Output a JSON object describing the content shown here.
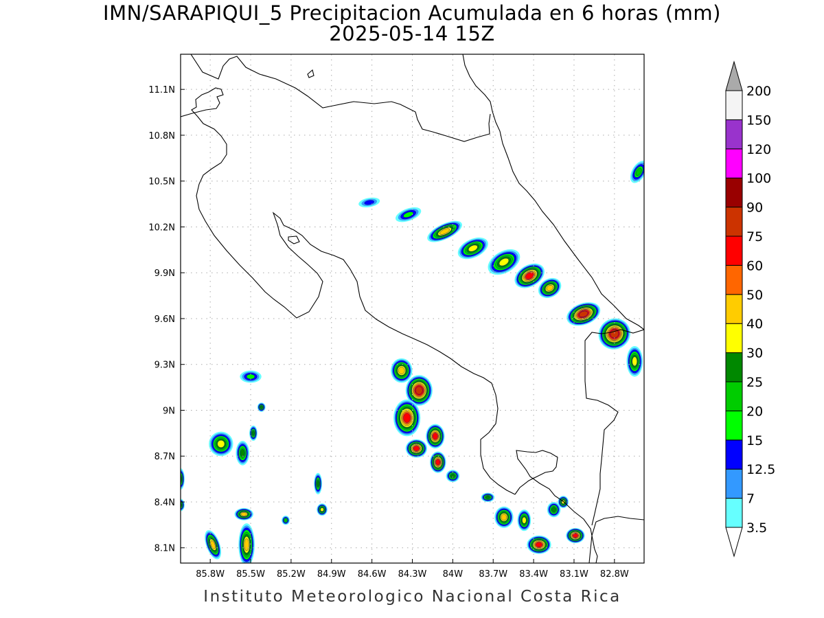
{
  "title": {
    "line1": "IMN/SARAPIQUI_5 Precipitacion Acumulada en 6 horas (mm)",
    "line2": "2025-05-14 15Z"
  },
  "footer": "Instituto Meteorologico Nacional Costa Rica",
  "map": {
    "lon_range": [
      -86.02,
      -82.58
    ],
    "lat_range": [
      8.0,
      11.33
    ],
    "lon_ticks": [
      {
        "value": -85.8,
        "label": "85.8W"
      },
      {
        "value": -85.5,
        "label": "85.5W"
      },
      {
        "value": -85.2,
        "label": "85.2W"
      },
      {
        "value": -84.9,
        "label": "84.9W"
      },
      {
        "value": -84.6,
        "label": "84.6W"
      },
      {
        "value": -84.3,
        "label": "84.3W"
      },
      {
        "value": -84.0,
        "label": "84W"
      },
      {
        "value": -83.7,
        "label": "83.7W"
      },
      {
        "value": -83.4,
        "label": "83.4W"
      },
      {
        "value": -83.1,
        "label": "83.1W"
      },
      {
        "value": -82.8,
        "label": "82.8W"
      }
    ],
    "lat_ticks": [
      {
        "value": 8.1,
        "label": "8.1N"
      },
      {
        "value": 8.4,
        "label": "8.4N"
      },
      {
        "value": 8.7,
        "label": "8.7N"
      },
      {
        "value": 9.0,
        "label": "9N"
      },
      {
        "value": 9.3,
        "label": "9.3N"
      },
      {
        "value": 9.6,
        "label": "9.6N"
      },
      {
        "value": 9.9,
        "label": "9.9N"
      },
      {
        "value": 10.2,
        "label": "10.2N"
      },
      {
        "value": 10.5,
        "label": "10.5N"
      },
      {
        "value": 10.8,
        "label": "10.8N"
      },
      {
        "value": 11.1,
        "label": "11.1N"
      }
    ],
    "grid": true,
    "coastline_color": "#000000"
  },
  "legend": {
    "units": "mm",
    "levels": [
      "3.5",
      "7",
      "12.5",
      "15",
      "20",
      "25",
      "30",
      "40",
      "50",
      "60",
      "75",
      "90",
      "100",
      "120",
      "150",
      "200"
    ],
    "colors": [
      "#66ffff",
      "#3399ff",
      "#0000ff",
      "#00ff00",
      "#00cc00",
      "#008800",
      "#ffff00",
      "#ffcc00",
      "#ff6600",
      "#ff0000",
      "#cc3300",
      "#990000",
      "#ff00ff",
      "#9933cc",
      "#f4f4f4",
      "#aaaaaa"
    ]
  },
  "precip_cells": [
    {
      "lon": -84.06,
      "lat": 10.17,
      "rx": 0.14,
      "ry": 0.05,
      "rot": -25,
      "max": 40
    },
    {
      "lon": -83.85,
      "lat": 10.06,
      "rx": 0.12,
      "ry": 0.06,
      "rot": -25,
      "max": 30
    },
    {
      "lon": -83.62,
      "lat": 9.97,
      "rx": 0.13,
      "ry": 0.07,
      "rot": -30,
      "max": 30
    },
    {
      "lon": -83.43,
      "lat": 9.88,
      "rx": 0.12,
      "ry": 0.07,
      "rot": -30,
      "max": 60
    },
    {
      "lon": -83.28,
      "lat": 9.8,
      "rx": 0.09,
      "ry": 0.06,
      "rot": -30,
      "max": 40
    },
    {
      "lon": -83.03,
      "lat": 9.63,
      "rx": 0.13,
      "ry": 0.07,
      "rot": -20,
      "max": 75
    },
    {
      "lon": -82.8,
      "lat": 9.5,
      "rx": 0.12,
      "ry": 0.1,
      "rot": -30,
      "max": 75
    },
    {
      "lon": -82.65,
      "lat": 9.32,
      "rx": 0.06,
      "ry": 0.1,
      "rot": 0,
      "max": 30
    },
    {
      "lon": -82.62,
      "lat": 10.56,
      "rx": 0.05,
      "ry": 0.08,
      "rot": 30,
      "max": 20
    },
    {
      "lon": -84.33,
      "lat": 10.28,
      "rx": 0.1,
      "ry": 0.04,
      "rot": -20,
      "max": 15
    },
    {
      "lon": -84.62,
      "lat": 10.36,
      "rx": 0.08,
      "ry": 0.03,
      "rot": -10,
      "max": 12.5
    },
    {
      "lon": -84.38,
      "lat": 9.26,
      "rx": 0.08,
      "ry": 0.08,
      "rot": 0,
      "max": 40
    },
    {
      "lon": -84.25,
      "lat": 9.13,
      "rx": 0.1,
      "ry": 0.1,
      "rot": 0,
      "max": 75
    },
    {
      "lon": -84.34,
      "lat": 8.95,
      "rx": 0.1,
      "ry": 0.12,
      "rot": 0,
      "max": 60
    },
    {
      "lon": -84.13,
      "lat": 8.83,
      "rx": 0.07,
      "ry": 0.08,
      "rot": 0,
      "max": 60
    },
    {
      "lon": -84.11,
      "lat": 8.66,
      "rx": 0.06,
      "ry": 0.07,
      "rot": 0,
      "max": 60
    },
    {
      "lon": -84.27,
      "lat": 8.75,
      "rx": 0.08,
      "ry": 0.06,
      "rot": 0,
      "max": 60
    },
    {
      "lon": -84.0,
      "lat": 8.57,
      "rx": 0.05,
      "ry": 0.04,
      "rot": 0,
      "max": 25
    },
    {
      "lon": -83.74,
      "lat": 8.43,
      "rx": 0.05,
      "ry": 0.03,
      "rot": 0,
      "max": 25
    },
    {
      "lon": -83.62,
      "lat": 8.3,
      "rx": 0.07,
      "ry": 0.07,
      "rot": 0,
      "max": 40
    },
    {
      "lon": -83.47,
      "lat": 8.28,
      "rx": 0.05,
      "ry": 0.07,
      "rot": 0,
      "max": 30
    },
    {
      "lon": -83.36,
      "lat": 8.12,
      "rx": 0.09,
      "ry": 0.06,
      "rot": 0,
      "max": 60
    },
    {
      "lon": -83.09,
      "lat": 8.18,
      "rx": 0.07,
      "ry": 0.05,
      "rot": 0,
      "max": 60
    },
    {
      "lon": -83.25,
      "lat": 8.35,
      "rx": 0.05,
      "ry": 0.05,
      "rot": 0,
      "max": 25
    },
    {
      "lon": -83.18,
      "lat": 8.4,
      "rx": 0.04,
      "ry": 0.04,
      "rot": 0,
      "max": 30
    },
    {
      "lon": -85.55,
      "lat": 8.32,
      "rx": 0.07,
      "ry": 0.04,
      "rot": 0,
      "max": 40
    },
    {
      "lon": -85.53,
      "lat": 8.12,
      "rx": 0.06,
      "ry": 0.14,
      "rot": 0,
      "max": 40
    },
    {
      "lon": -85.78,
      "lat": 8.12,
      "rx": 0.05,
      "ry": 0.1,
      "rot": -20,
      "max": 40
    },
    {
      "lon": -85.72,
      "lat": 8.78,
      "rx": 0.09,
      "ry": 0.08,
      "rot": 0,
      "max": 30
    },
    {
      "lon": -85.56,
      "lat": 8.72,
      "rx": 0.05,
      "ry": 0.08,
      "rot": 0,
      "max": 25
    },
    {
      "lon": -85.5,
      "lat": 9.22,
      "rx": 0.08,
      "ry": 0.04,
      "rot": 0,
      "max": 15
    },
    {
      "lon": -85.48,
      "lat": 8.85,
      "rx": 0.03,
      "ry": 0.05,
      "rot": 0,
      "max": 25
    },
    {
      "lon": -85.42,
      "lat": 9.02,
      "rx": 0.03,
      "ry": 0.03,
      "rot": 0,
      "max": 25
    },
    {
      "lon": -85.0,
      "lat": 8.52,
      "rx": 0.03,
      "ry": 0.07,
      "rot": 0,
      "max": 25
    },
    {
      "lon": -84.97,
      "lat": 8.35,
      "rx": 0.04,
      "ry": 0.04,
      "rot": 0,
      "max": 30
    },
    {
      "lon": -85.24,
      "lat": 8.28,
      "rx": 0.03,
      "ry": 0.03,
      "rot": 0,
      "max": 20
    },
    {
      "lon": -86.02,
      "lat": 8.55,
      "rx": 0.03,
      "ry": 0.07,
      "rot": 0,
      "max": 25
    },
    {
      "lon": -86.02,
      "lat": 8.38,
      "rx": 0.03,
      "ry": 0.04,
      "rot": 0,
      "max": 25
    }
  ]
}
